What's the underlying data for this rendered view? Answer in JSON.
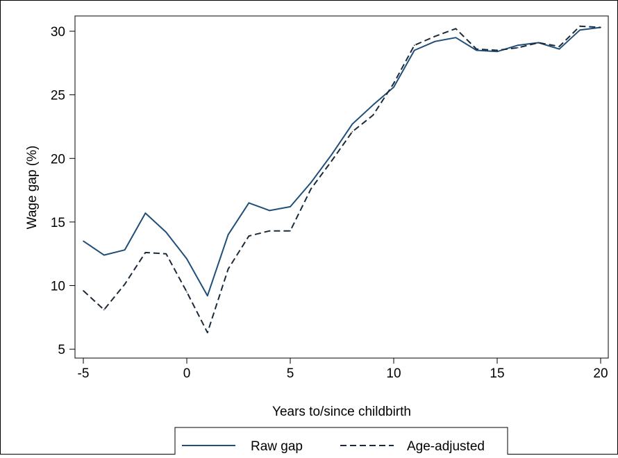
{
  "chart_data": {
    "type": "line",
    "title": "",
    "xlabel": "Years to/since childbirth",
    "ylabel": "Wage gap (%)",
    "xlim": [
      -5,
      20
    ],
    "ylim": [
      4.3,
      31.2
    ],
    "xticks": [
      -5,
      0,
      5,
      10,
      15,
      20
    ],
    "yticks": [
      5,
      10,
      15,
      20,
      25,
      30
    ],
    "xtick_labels": [
      "-5",
      "0",
      "5",
      "10",
      "15",
      "20"
    ],
    "ytick_labels": [
      "5",
      "10",
      "15",
      "20",
      "25",
      "30"
    ],
    "grid": false,
    "legend_position": "bottom",
    "x": [
      -5,
      -4,
      -3,
      -2,
      -1,
      0,
      1,
      2,
      3,
      4,
      5,
      6,
      7,
      8,
      9,
      10,
      11,
      12,
      13,
      14,
      15,
      16,
      17,
      18,
      19,
      20
    ],
    "series": [
      {
        "name": "Raw gap",
        "style": "solid",
        "color": "#1f4e79",
        "values": [
          13.5,
          12.4,
          12.8,
          15.7,
          14.2,
          12.1,
          9.2,
          14.0,
          16.5,
          15.9,
          16.2,
          18.1,
          20.3,
          22.7,
          24.2,
          25.6,
          28.5,
          29.2,
          29.5,
          28.5,
          28.4,
          28.9,
          29.1,
          28.6,
          30.1,
          30.3
        ]
      },
      {
        "name": "Age-adjusted",
        "style": "dashed",
        "color": "#1a2a3a",
        "values": [
          9.6,
          8.1,
          10.1,
          12.6,
          12.5,
          9.5,
          6.3,
          11.3,
          13.9,
          14.3,
          14.3,
          17.6,
          19.8,
          22.1,
          23.4,
          25.9,
          28.9,
          29.6,
          30.2,
          28.6,
          28.5,
          28.7,
          29.1,
          28.8,
          30.4,
          30.3
        ]
      }
    ]
  }
}
